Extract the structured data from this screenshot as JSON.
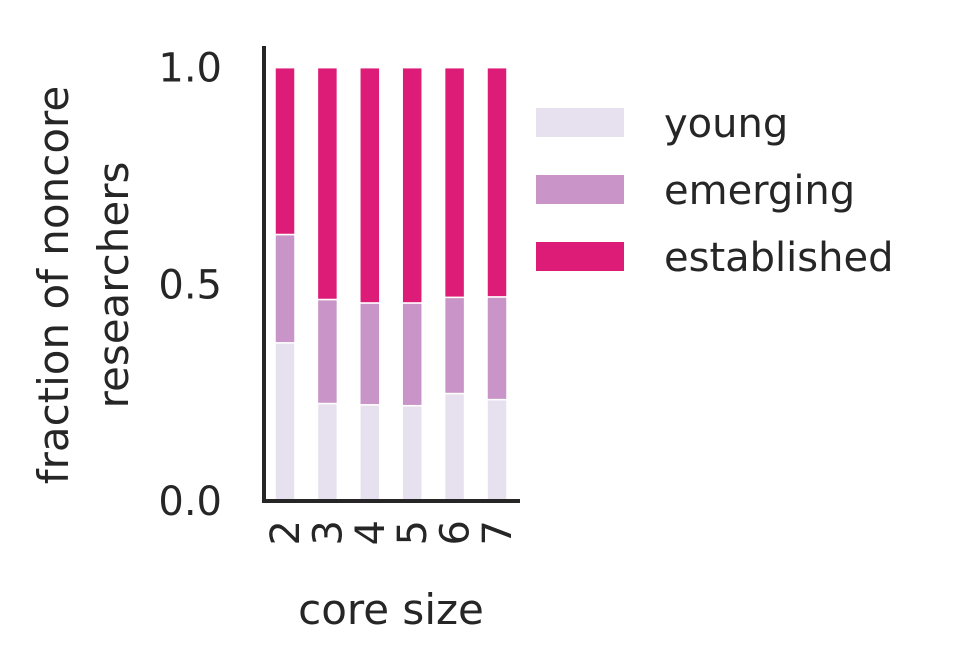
{
  "chart_data": {
    "type": "bar",
    "stacked": true,
    "xlabel": "core size",
    "ylabel": [
      "fraction of noncore",
      "researchers"
    ],
    "categories": [
      "2",
      "3",
      "4",
      "5",
      "6",
      "7"
    ],
    "ylim": [
      0,
      1.05
    ],
    "yticks": [
      {
        "value": 0.0,
        "label": "0.0"
      },
      {
        "value": 0.5,
        "label": "0.5"
      },
      {
        "value": 1.0,
        "label": "1.0"
      }
    ],
    "grid": false,
    "legend_position": "right",
    "series": [
      {
        "name": "young",
        "color": "#e7e1ef",
        "values": [
          0.365,
          0.225,
          0.222,
          0.22,
          0.248,
          0.234
        ]
      },
      {
        "name": "emerging",
        "color": "#c994c7",
        "values": [
          0.25,
          0.24,
          0.235,
          0.237,
          0.222,
          0.237
        ]
      },
      {
        "name": "established",
        "color": "#dd1c77",
        "values": [
          0.385,
          0.535,
          0.543,
          0.543,
          0.53,
          0.529
        ]
      }
    ]
  }
}
